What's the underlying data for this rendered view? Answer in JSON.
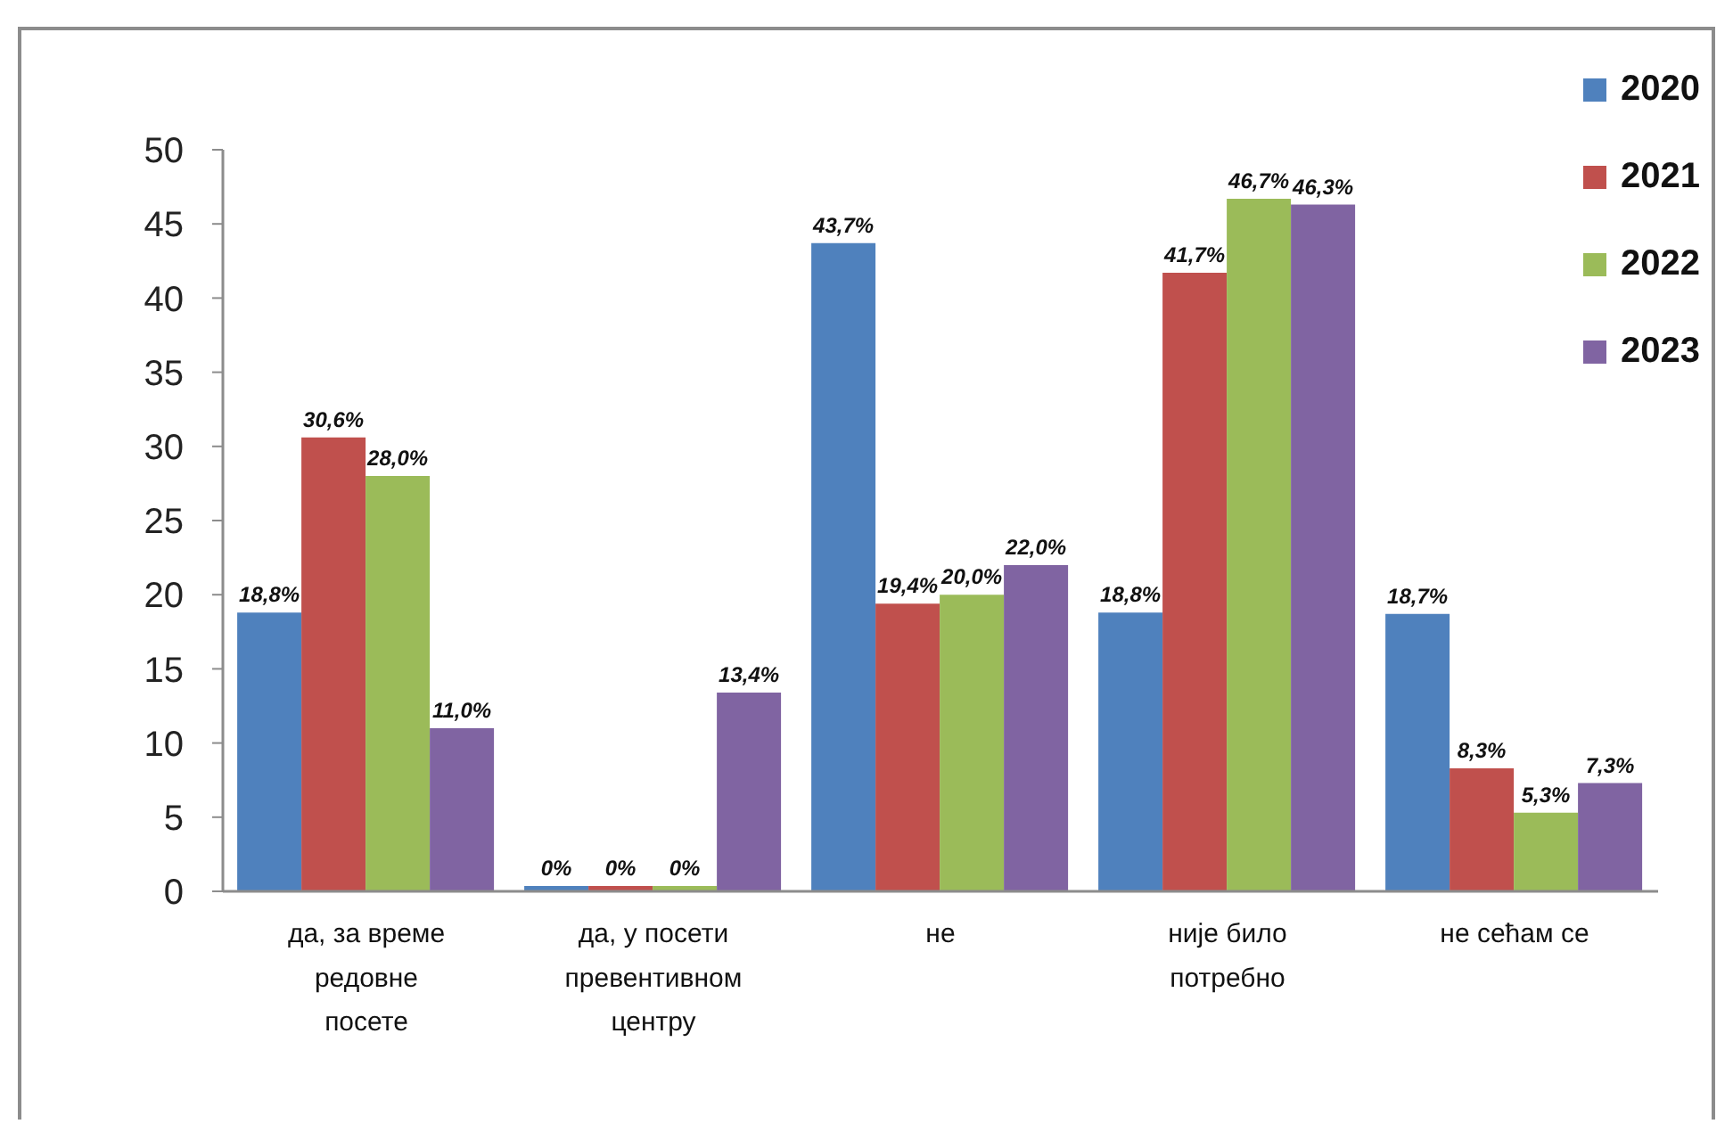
{
  "chart_data": {
    "type": "bar",
    "categories": [
      "да, за време редовне посете",
      "да, у посети превентивном центру",
      "не",
      "није било потребно",
      "не сећам се"
    ],
    "series": [
      {
        "name": "2020",
        "color": "#4f81bd",
        "values": [
          18.8,
          0,
          43.7,
          18.8,
          18.7
        ],
        "value_labels": [
          "18,8%",
          "0%",
          "43,7%",
          "18,8%",
          "18,7%"
        ]
      },
      {
        "name": "2021",
        "color": "#c0504d",
        "values": [
          30.6,
          0,
          19.4,
          41.7,
          8.3
        ],
        "value_labels": [
          "30,6%",
          "0%",
          "19,4%",
          "41,7%",
          "8,3%"
        ]
      },
      {
        "name": "2022",
        "color": "#9bbb59",
        "values": [
          28.0,
          0,
          20.0,
          46.7,
          5.3
        ],
        "value_labels": [
          "28,0%",
          "0%",
          "20,0%",
          "46,7%",
          "5,3%"
        ]
      },
      {
        "name": "2023",
        "color": "#8064a2",
        "values": [
          11.0,
          13.4,
          22.0,
          46.3,
          7.3
        ],
        "value_labels": [
          "11,0%",
          "13,4%",
          "22,0%",
          "46,3%",
          "7,3%"
        ]
      }
    ],
    "ylim": [
      0,
      50
    ],
    "yticks": [
      0,
      5,
      10,
      15,
      20,
      25,
      30,
      35,
      40,
      45,
      50
    ],
    "legend": "top right"
  }
}
